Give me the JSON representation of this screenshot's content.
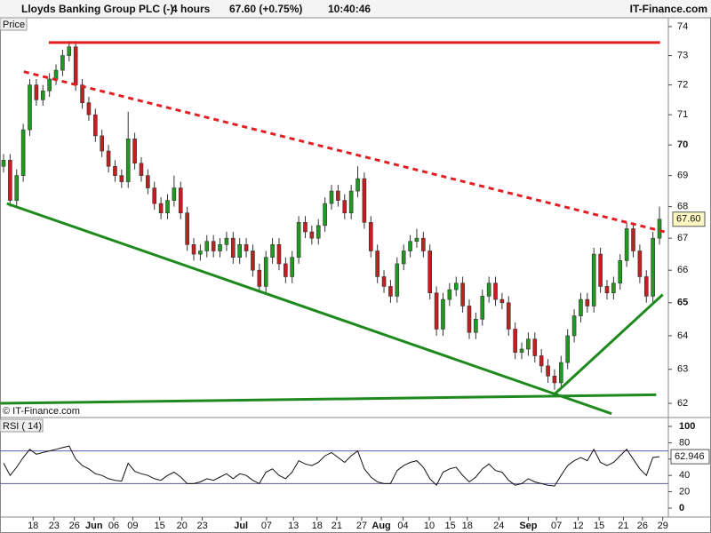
{
  "chart_data": {
    "type": "candlestick",
    "title": "Lloyds Banking Group PLC (-)",
    "interval": "4 hours",
    "change": "67.60 (+0.75%)",
    "time": "10:40:46",
    "brand": "IT-Finance.com",
    "panel_label": "Price",
    "copyright": "© IT-Finance.com",
    "log_scale": true,
    "grid": false,
    "up_color": "#1f9a1f",
    "down_color": "#c02020",
    "wick_color": "#333333",
    "xlim": [
      -0.54,
      101.08
    ],
    "ylim": [
      61.64,
      74.37
    ],
    "yticks": [
      62,
      63,
      64,
      65,
      66,
      67,
      68,
      69,
      70,
      71,
      72,
      73,
      74
    ],
    "xticks": [
      {
        "value": 4.5,
        "label": "18"
      },
      {
        "value": 7.7,
        "label": "23"
      },
      {
        "value": 10.8,
        "label": "26"
      },
      {
        "value": 13.8,
        "label": "Jun"
      },
      {
        "value": 16.8,
        "label": "06"
      },
      {
        "value": 19.7,
        "label": "09"
      },
      {
        "value": 23.8,
        "label": "15"
      },
      {
        "value": 27.2,
        "label": "20"
      },
      {
        "value": 30.3,
        "label": "23"
      },
      {
        "value": 36.2,
        "label": "Jul"
      },
      {
        "value": 40.1,
        "label": "07"
      },
      {
        "value": 44.2,
        "label": "13"
      },
      {
        "value": 47.8,
        "label": "18"
      },
      {
        "value": 50.8,
        "label": "21"
      },
      {
        "value": 54.6,
        "label": "27"
      },
      {
        "value": 57.6,
        "label": "Aug"
      },
      {
        "value": 60.9,
        "label": "04"
      },
      {
        "value": 64.9,
        "label": "10"
      },
      {
        "value": 68.1,
        "label": "15"
      },
      {
        "value": 70.7,
        "label": "18"
      },
      {
        "value": 75.5,
        "label": "24"
      },
      {
        "value": 80,
        "label": "Sep"
      },
      {
        "value": 84.3,
        "label": "07"
      },
      {
        "value": 87.6,
        "label": "12"
      },
      {
        "value": 90.8,
        "label": "15"
      },
      {
        "value": 94.5,
        "label": "21"
      },
      {
        "value": 97.4,
        "label": "26"
      },
      {
        "value": 100.5,
        "label": "29"
      }
    ],
    "open": [
      69.3,
      69.5,
      68.2,
      69,
      70.5,
      72,
      71.5,
      71.8,
      72.2,
      72.5,
      73,
      73.3,
      72,
      71.4,
      71,
      70.3,
      69.8,
      69.3,
      69,
      68.8,
      70.2,
      69.4,
      69,
      68.6,
      68.1,
      67.8,
      68.2,
      68.6,
      67.8,
      66.8,
      66.5,
      66.6,
      66.9,
      66.6,
      66.8,
      67,
      66.4,
      66.8,
      66.6,
      66,
      65.5,
      66.4,
      66.8,
      66.2,
      65.8,
      66.4,
      67.5,
      67.2,
      67,
      67.4,
      68.1,
      68.5,
      68.2,
      67.8,
      68.5,
      68.9,
      67.5,
      66.6,
      65.8,
      65.5,
      65.2,
      66.2,
      66.6,
      66.9,
      67,
      66.6,
      65.3,
      64.2,
      65.1,
      65.4,
      65.6,
      64.9,
      64.1,
      64.5,
      65.2,
      65.6,
      65.1,
      65,
      64.2,
      63.5,
      63.6,
      63.9,
      63.4,
      63.1,
      62.8,
      62.6,
      63.2,
      64,
      64.6,
      65.1,
      64.9,
      66.5,
      65.5,
      65.3,
      65.6,
      66.3,
      67.3,
      66.6,
      65.8,
      65.2,
      67
    ],
    "high": [
      69.7,
      69.7,
      69.2,
      70.7,
      72.2,
      72.2,
      72,
      72.4,
      72.7,
      73.2,
      73.5,
      73.5,
      72.2,
      71.6,
      71.2,
      70.5,
      70,
      69.5,
      69.2,
      71.1,
      70.4,
      69.6,
      69.2,
      68.8,
      68.3,
      68.4,
      69,
      68.8,
      68,
      67,
      66.8,
      67.1,
      67.1,
      67,
      67.2,
      67.2,
      67,
      67,
      66.8,
      66.2,
      66.6,
      67,
      67,
      66.4,
      66.6,
      67.7,
      67.7,
      67.4,
      67.6,
      68.3,
      68.7,
      68.7,
      68.4,
      68.7,
      69.3,
      69.1,
      67.7,
      66.8,
      66,
      65.7,
      66.4,
      66.8,
      67.1,
      67.3,
      67.2,
      66.8,
      65.5,
      65.3,
      65.6,
      65.8,
      65.8,
      65.1,
      64.7,
      65.4,
      65.8,
      65.8,
      65.3,
      65.2,
      64.4,
      63.8,
      64.1,
      64.1,
      63.6,
      63.3,
      63,
      63.4,
      64.2,
      64.8,
      65.3,
      65.3,
      66.7,
      66.7,
      65.7,
      65.8,
      66.5,
      67.5,
      67.5,
      66.8,
      66,
      67.2,
      68
    ],
    "low": [
      69.1,
      68,
      68,
      68.8,
      70.3,
      71.3,
      71.3,
      71.6,
      72,
      72.3,
      72.8,
      71.8,
      71.2,
      70.8,
      70.1,
      69.6,
      69.1,
      68.8,
      68.6,
      68.6,
      69.2,
      68.8,
      68.4,
      67.9,
      67.6,
      67.6,
      68,
      67.6,
      66.6,
      66.3,
      66.3,
      66.4,
      66.4,
      66.4,
      66.6,
      66.2,
      66.2,
      66.4,
      65.8,
      65.3,
      65.3,
      66.2,
      66,
      65.6,
      65.6,
      66.2,
      67,
      66.8,
      66.8,
      67.2,
      67.9,
      68,
      67.6,
      67.6,
      68.3,
      67.3,
      66.4,
      65.6,
      65.3,
      65,
      65,
      66,
      66.4,
      66.7,
      66.4,
      65.1,
      64,
      64,
      64.9,
      65.2,
      64.7,
      63.9,
      63.9,
      64.3,
      65,
      64.9,
      64.8,
      64,
      63.3,
      63.3,
      63.4,
      63.2,
      62.9,
      62.6,
      62.4,
      62.4,
      63,
      63.8,
      64.4,
      64.7,
      64.7,
      65.3,
      65.1,
      65.1,
      65.4,
      66.1,
      66.4,
      65.6,
      65,
      65,
      66.8
    ],
    "close": [
      69.5,
      68.2,
      69,
      70.5,
      72,
      71.5,
      71.8,
      72.2,
      72.5,
      73,
      73.3,
      72,
      71.4,
      71,
      70.3,
      69.8,
      69.3,
      69,
      68.8,
      70.2,
      69.4,
      69,
      68.6,
      68.1,
      67.8,
      68.2,
      68.6,
      67.8,
      66.8,
      66.5,
      66.6,
      66.9,
      66.6,
      66.8,
      67,
      66.4,
      66.8,
      66.6,
      66,
      65.5,
      66.4,
      66.8,
      66.2,
      65.8,
      66.4,
      67.5,
      67.2,
      67,
      67.4,
      68.1,
      68.5,
      68.2,
      67.8,
      68.5,
      68.9,
      67.5,
      66.6,
      65.8,
      65.5,
      65.2,
      66.2,
      66.6,
      66.9,
      67,
      66.6,
      65.3,
      64.2,
      65.1,
      65.4,
      65.6,
      64.9,
      64.1,
      64.5,
      65.2,
      65.6,
      65.1,
      65,
      64.2,
      63.5,
      63.6,
      63.9,
      63.4,
      63.1,
      62.8,
      62.6,
      63.2,
      64,
      64.6,
      65.1,
      64.9,
      66.5,
      65.5,
      65.3,
      65.6,
      66.3,
      67.3,
      66.6,
      65.8,
      65.2,
      67,
      67.6
    ],
    "last_price_label": "67.60",
    "lines": [
      {
        "x": [
          6.9,
          100.1
        ],
        "y": [
          73.45,
          73.45
        ],
        "color": "#e02020",
        "dashed": false
      },
      {
        "x": [
          3.1,
          100.8
        ],
        "y": [
          72.45,
          67.2
        ],
        "color": "#e02020",
        "dashed": true
      },
      {
        "x": [
          0.5,
          92.7
        ],
        "y": [
          68.1,
          61.7
        ],
        "color": "#1e8a1e",
        "dashed": false
      },
      {
        "x": [
          -0.5,
          99.5
        ],
        "y": [
          62,
          62.25
        ],
        "color": "#1e8a1e",
        "dashed": false
      },
      {
        "x": [
          83.9,
          100.5
        ],
        "y": [
          62.25,
          65.25
        ],
        "color": "#1e8a1e",
        "dashed": false
      }
    ],
    "rsi": {
      "label": "RSI ( 14)",
      "color": "#111111",
      "levels": [
        70,
        30
      ],
      "level_color": "#5a5aa8",
      "ylim": [
        -10.9,
        108.7
      ],
      "yticks": [
        0,
        20,
        40,
        60,
        80,
        100
      ],
      "values": [
        55,
        40,
        50,
        62,
        72,
        66,
        68,
        70,
        72,
        74,
        76,
        60,
        52,
        48,
        42,
        40,
        36,
        34,
        33,
        55,
        45,
        42,
        40,
        36,
        34,
        40,
        44,
        38,
        30,
        30,
        32,
        36,
        34,
        38,
        42,
        36,
        42,
        40,
        34,
        30,
        44,
        48,
        40,
        36,
        44,
        58,
        54,
        52,
        56,
        64,
        68,
        62,
        56,
        64,
        70,
        48,
        38,
        32,
        30,
        30,
        46,
        52,
        56,
        58,
        50,
        36,
        28,
        44,
        48,
        50,
        40,
        32,
        38,
        48,
        54,
        46,
        44,
        34,
        28,
        30,
        36,
        32,
        30,
        28,
        27,
        40,
        52,
        58,
        62,
        58,
        72,
        56,
        52,
        56,
        64,
        72,
        60,
        48,
        40,
        62,
        62.946
      ]
    }
  }
}
